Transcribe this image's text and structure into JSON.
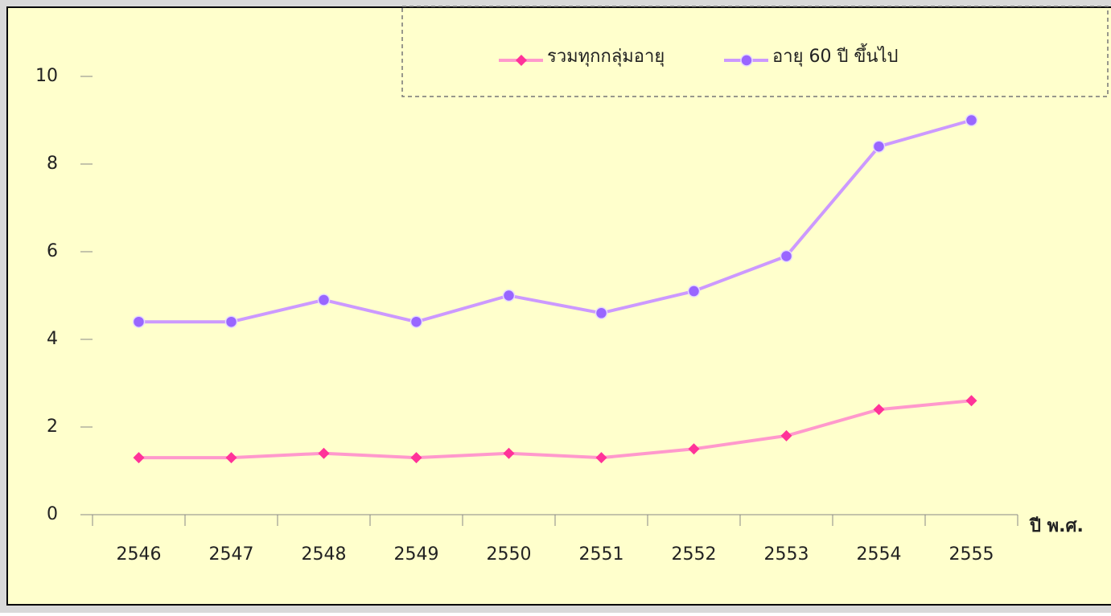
{
  "chart_data": {
    "type": "line",
    "x_label": "ปี พ.ศ.",
    "categories": [
      "2546",
      "2547",
      "2548",
      "2549",
      "2550",
      "2551",
      "2552",
      "2553",
      "2554",
      "2555"
    ],
    "series": [
      {
        "name": "รวมทุกกลุ่มอายุ",
        "color": "#ff99cc",
        "marker_color": "#ff3399",
        "marker": "diamond",
        "values": [
          1.3,
          1.3,
          1.4,
          1.3,
          1.4,
          1.3,
          1.5,
          1.8,
          2.4,
          2.6
        ]
      },
      {
        "name": "อายุ 60 ปี ขึ้นไป",
        "color": "#cc99ff",
        "marker_color": "#9966ff",
        "marker": "circle",
        "values": [
          4.4,
          4.4,
          4.9,
          4.4,
          5.0,
          4.6,
          5.1,
          5.9,
          8.4,
          9.0
        ]
      }
    ],
    "ylim": [
      0,
      10
    ],
    "yticks": [
      0,
      2,
      4,
      6,
      8,
      10
    ],
    "grid": false,
    "legend": "top-right",
    "background": "#ffffcc"
  }
}
